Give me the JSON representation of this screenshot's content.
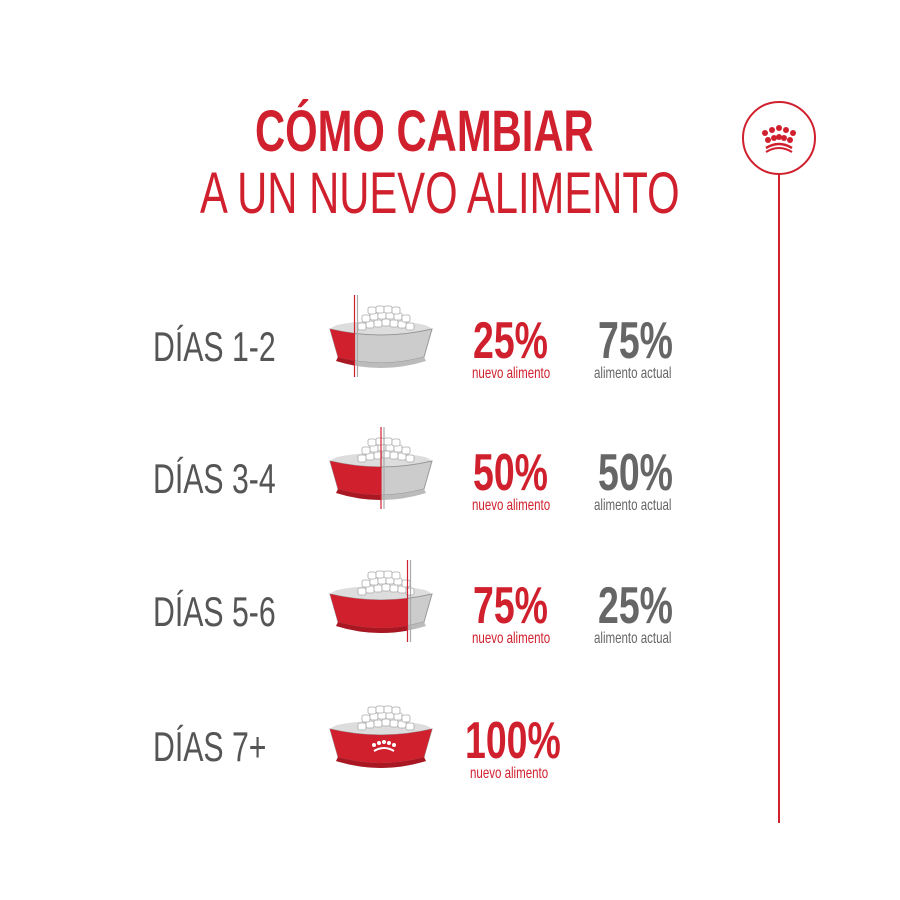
{
  "title": {
    "line1": "CÓMO CAMBIAR",
    "line2": "A UN NUEVO ALIMENTO"
  },
  "colors": {
    "accent": "#d0202e",
    "gray": "#666666",
    "bowl_gray": "#c8c8c8"
  },
  "logo_icon": "crown-icon",
  "steps": [
    {
      "days": "DÍAS 1-2",
      "new_pct": "25%",
      "new_label": "nuevo alimento",
      "current_pct": "75%",
      "current_label": "alimento actual",
      "new_fraction": 0.25
    },
    {
      "days": "DÍAS 3-4",
      "new_pct": "50%",
      "new_label": "nuevo alimento",
      "current_pct": "50%",
      "current_label": "alimento actual",
      "new_fraction": 0.5
    },
    {
      "days": "DÍAS 5-6",
      "new_pct": "75%",
      "new_label": "nuevo alimento",
      "current_pct": "25%",
      "current_label": "alimento actual",
      "new_fraction": 0.75
    },
    {
      "days": "DÍAS 7+",
      "new_pct": "100%",
      "new_label": "nuevo alimento",
      "new_fraction": 1.0
    }
  ]
}
